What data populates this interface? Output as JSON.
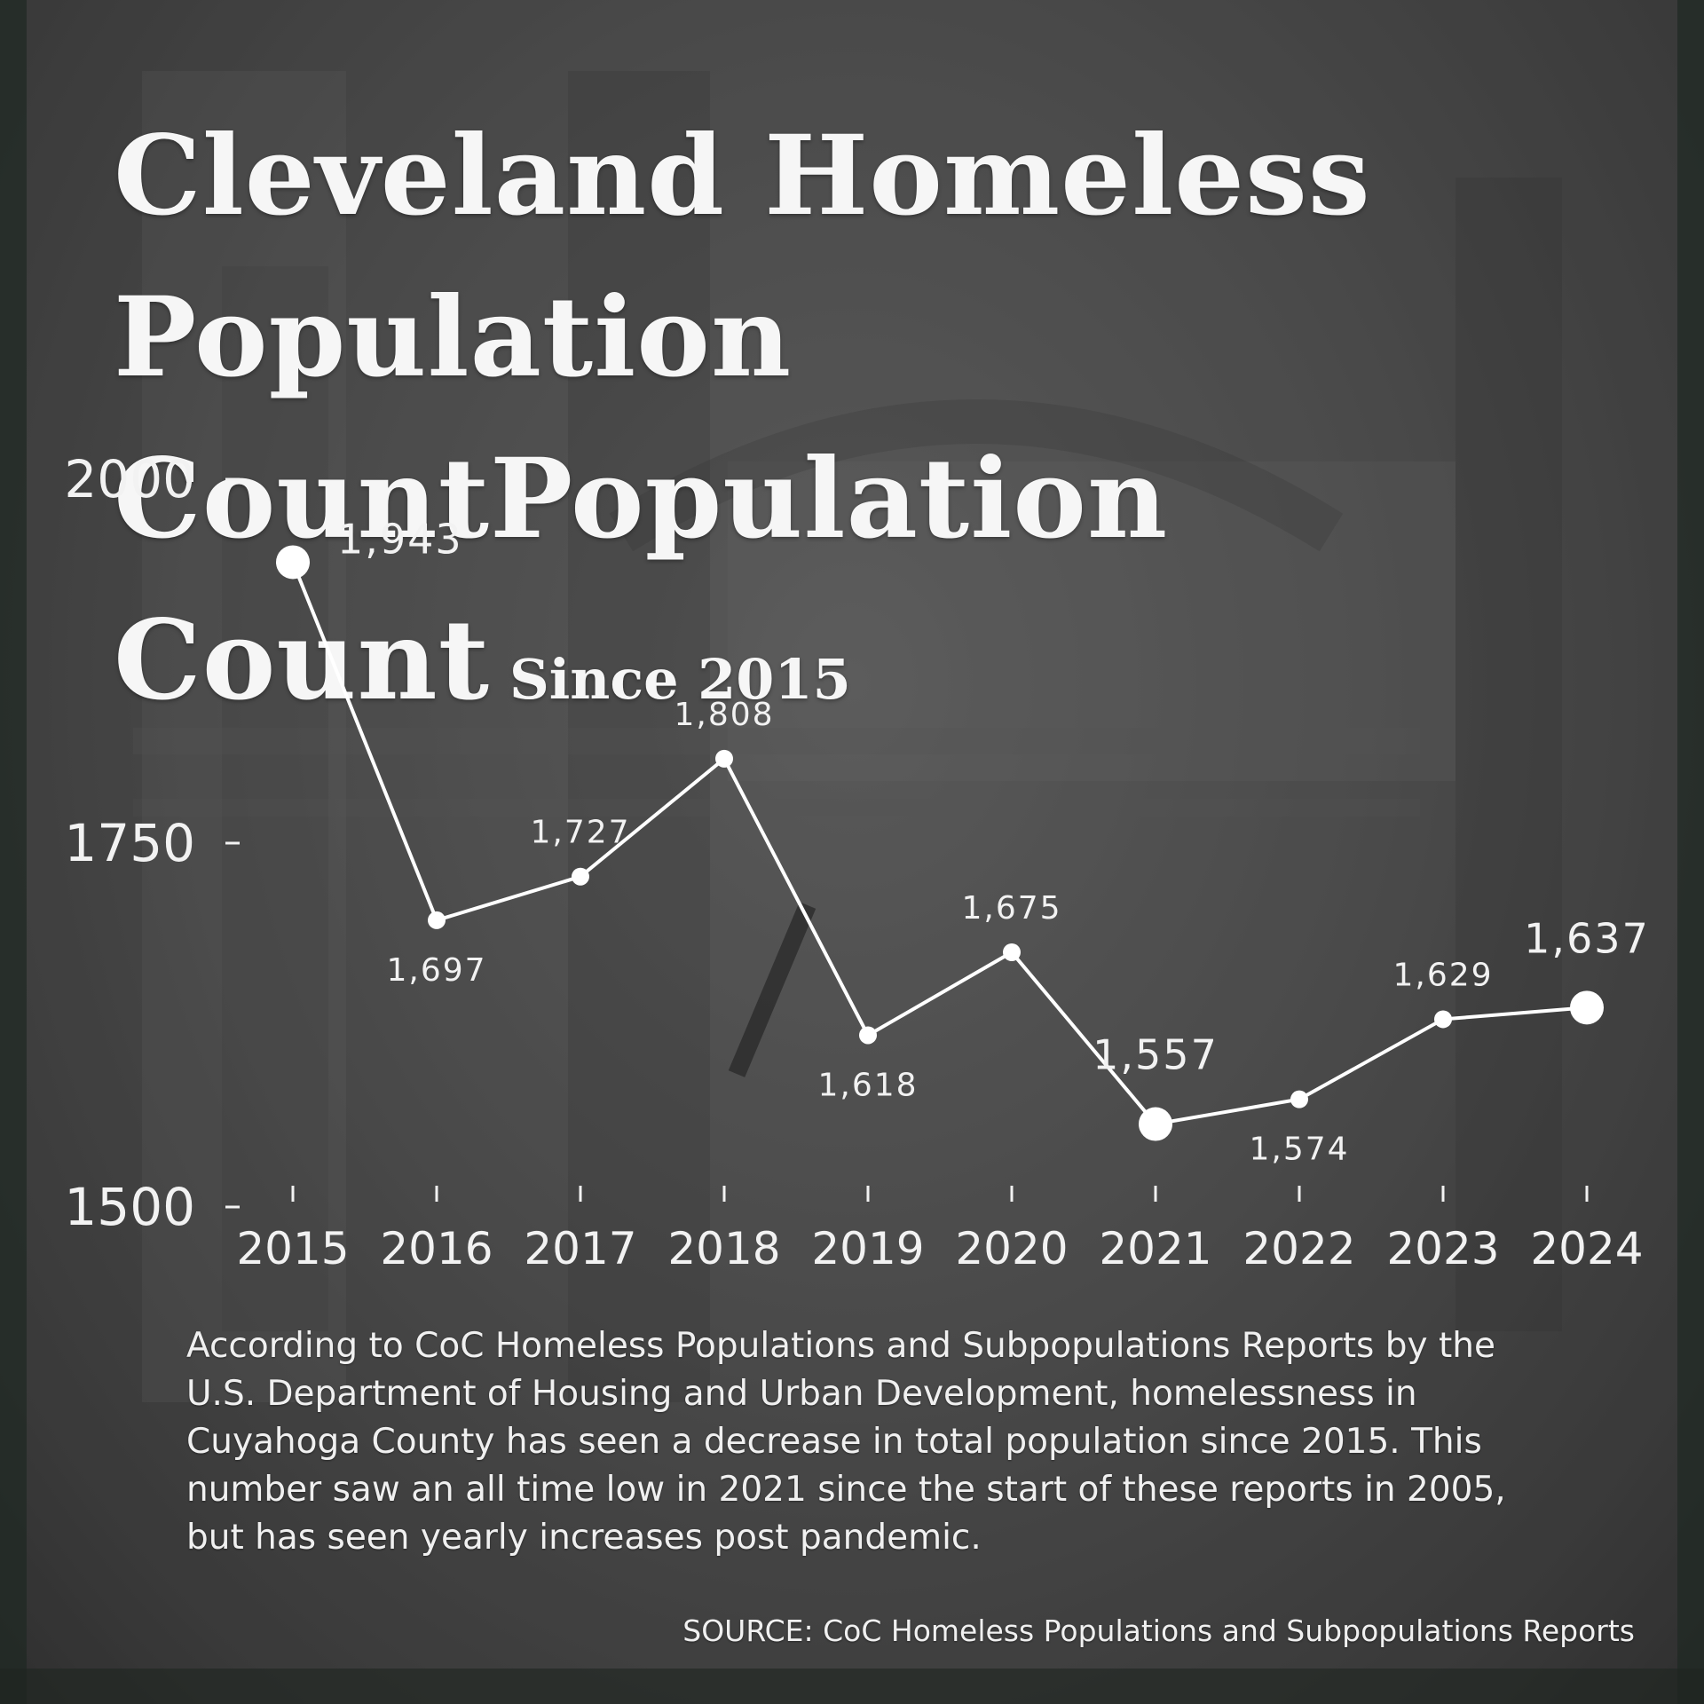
{
  "title": {
    "main": "Cleveland Homeless Population Count",
    "subtitle": "Since 2015"
  },
  "description": "According to CoC Homeless Populations and Subpopulations Reports by the U.S. Department of Housing and Urban Development, homelessness in Cuyahoga County has seen a decrease in total population since 2015. This number saw an all time low in 2021 since the start of these reports in 2005, but has seen yearly increases post pandemic.",
  "source": "SOURCE: CoC Homeless Populations and Subpopulations Reports",
  "colors": {
    "line": "#ffffff",
    "text": "#f2f2f2",
    "background": "#4a4a4a"
  },
  "chart_data": {
    "type": "line",
    "title": "Cleveland Homeless Population Count",
    "subtitle": "Since 2015",
    "xlabel": "",
    "ylabel": "",
    "x": [
      "2015",
      "2016",
      "2017",
      "2018",
      "2019",
      "2020",
      "2021",
      "2022",
      "2023",
      "2024"
    ],
    "series": [
      {
        "values": [
          1943,
          1697,
          1727,
          1808,
          1618,
          1675,
          1557,
          1574,
          1629,
          1637
        ],
        "labels": [
          "1,943",
          "1,697",
          "1,727",
          "1,808",
          "1,618",
          "1,675",
          "1,557",
          "1,574",
          "1,629",
          "1,637"
        ]
      }
    ],
    "highlighted": [
      "2015",
      "2021",
      "2024"
    ],
    "ylim": [
      1500,
      2000
    ],
    "yticks": [
      "1500",
      "1750",
      "2000"
    ],
    "grid": false,
    "legend": "none"
  }
}
